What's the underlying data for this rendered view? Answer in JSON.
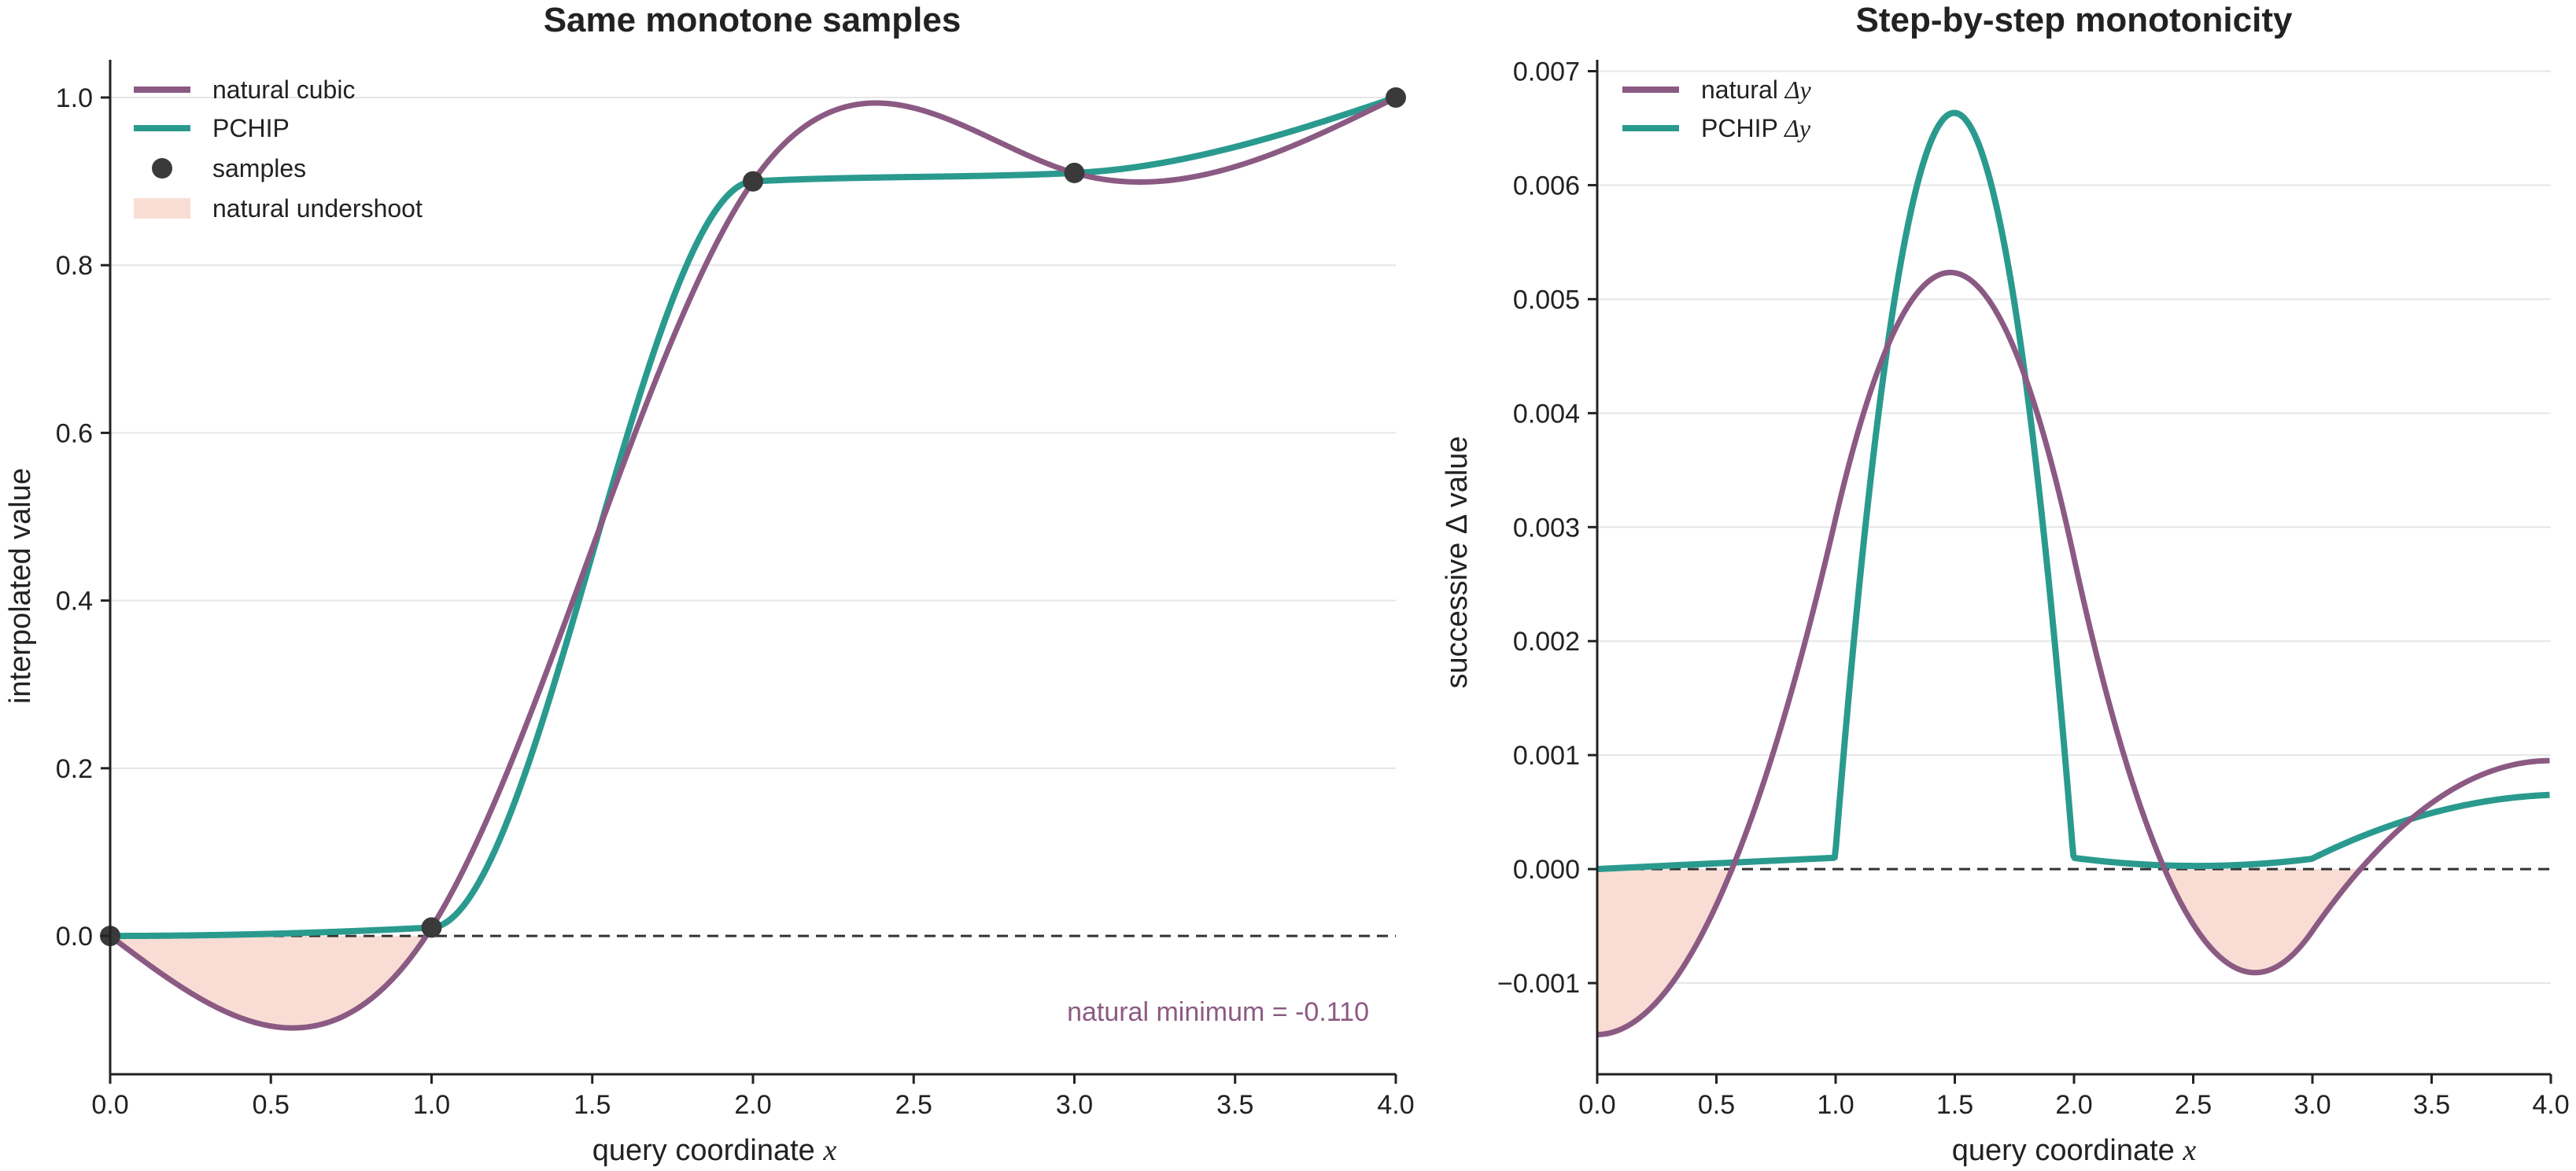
{
  "colors": {
    "natural": "#8B5A83",
    "pchip": "#2A9A8F",
    "samples": "#3A3A3A",
    "undershoot": "#F9DDD4",
    "zero_line": "#333333",
    "grid": "#E6E6E6",
    "axis": "#222222"
  },
  "chart_data": [
    {
      "type": "line",
      "title": "Same monotone samples",
      "xlabel": "query coordinate",
      "xlabel_var": "x",
      "ylabel": "interpolated value",
      "xlim": [
        0.0,
        4.0
      ],
      "ylim": [
        -0.165,
        1.045
      ],
      "xticks": [
        "0.0",
        "0.5",
        "1.0",
        "1.5",
        "2.0",
        "2.5",
        "3.0",
        "3.5",
        "4.0"
      ],
      "xtick_values": [
        0.0,
        0.5,
        1.0,
        1.5,
        2.0,
        2.5,
        3.0,
        3.5,
        4.0
      ],
      "yticks": [
        "0.0",
        "0.2",
        "0.4",
        "0.6",
        "0.8",
        "1.0"
      ],
      "ytick_values": [
        0.0,
        0.2,
        0.4,
        0.6,
        0.8,
        1.0
      ],
      "grid": "horizontal",
      "legend_position": "upper-left",
      "samples": {
        "name": "samples",
        "x": [
          0,
          1,
          2,
          3,
          4
        ],
        "y": [
          0.0,
          0.01,
          0.9,
          0.91,
          1.0
        ]
      },
      "series": [
        {
          "name": "natural cubic",
          "kind": "natural_cubic"
        },
        {
          "name": "PCHIP",
          "kind": "pchip"
        }
      ],
      "fill": {
        "name": "natural undershoot"
      },
      "reference_line": {
        "y": 0.0,
        "style": "dashed"
      },
      "annotation": "natural minimum = -0.110"
    },
    {
      "type": "line",
      "title": "Step-by-step monotonicity",
      "xlabel": "query coordinate",
      "xlabel_var": "x",
      "ylabel": "successive Δ value",
      "xlim": [
        0.0,
        4.0
      ],
      "ylim": [
        -0.0018,
        0.0071
      ],
      "xticks": [
        "0.0",
        "0.5",
        "1.0",
        "1.5",
        "2.0",
        "2.5",
        "3.0",
        "3.5",
        "4.0"
      ],
      "xtick_values": [
        0.0,
        0.5,
        1.0,
        1.5,
        2.0,
        2.5,
        3.0,
        3.5,
        4.0
      ],
      "yticks": [
        "−0.001",
        "0.000",
        "0.001",
        "0.002",
        "0.003",
        "0.004",
        "0.005",
        "0.006",
        "0.007"
      ],
      "ytick_values": [
        -0.001,
        0.0,
        0.001,
        0.002,
        0.003,
        0.004,
        0.005,
        0.006,
        0.007
      ],
      "grid": "horizontal",
      "legend_position": "upper-left",
      "series": [
        {
          "name": "natural Δy",
          "name_text": "natural ",
          "name_math": "Δy",
          "kind": "natural_diff"
        },
        {
          "name": "PCHIP Δy",
          "name_text": "PCHIP ",
          "name_math": "Δy",
          "kind": "pchip_diff"
        }
      ],
      "reference_line": {
        "y": 0.0,
        "style": "dashed"
      }
    }
  ]
}
